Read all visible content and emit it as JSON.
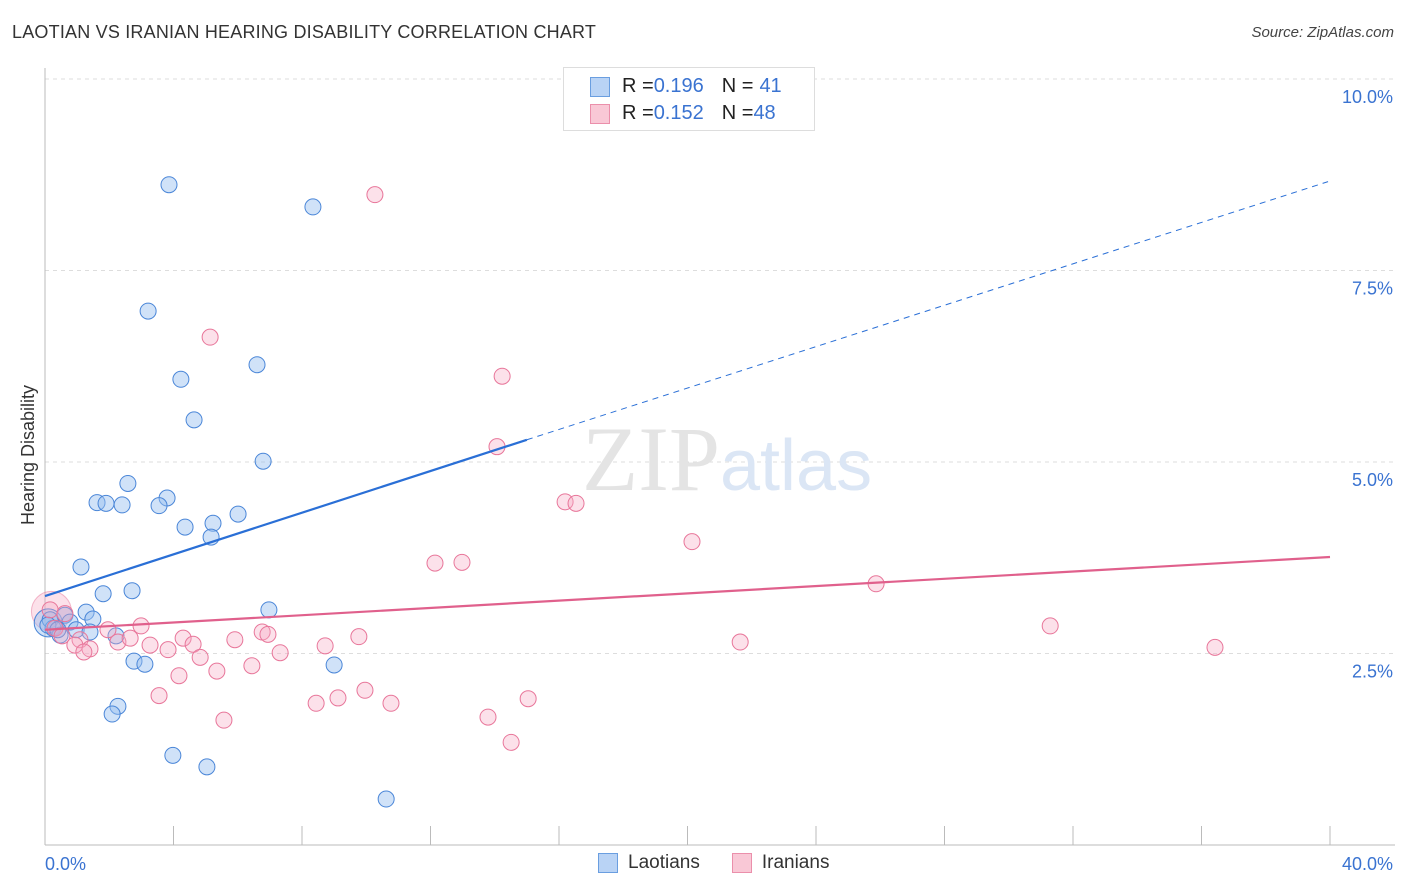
{
  "title": "LAOTIAN VS IRANIAN HEARING DISABILITY CORRELATION CHART",
  "source": "Source: ZipAtlas.com",
  "watermark": "ZIPatlas",
  "legend": [
    {
      "r_label": "R = ",
      "r": "0.196",
      "n_label": "N = ",
      "n": "41"
    },
    {
      "r_label": "R = ",
      "r": "0.152",
      "n_label": "N = ",
      "n": "48"
    }
  ],
  "chart_data": {
    "type": "scatter",
    "title": "LAOTIAN VS IRANIAN HEARING DISABILITY CORRELATION CHART",
    "xlabel": "",
    "ylabel": "Hearing Disability",
    "xlim": [
      0,
      40
    ],
    "ylim": [
      0,
      10
    ],
    "x_tick_labels": [
      "0.0%",
      "40.0%"
    ],
    "y_ticks": [
      2.5,
      5.0,
      7.5,
      10.0
    ],
    "y_tick_labels": [
      "2.5%",
      "5.0%",
      "7.5%",
      "10.0%"
    ],
    "grid": true,
    "legend_placement": "top-center",
    "colors": {
      "Laotians": "#4a86d8",
      "Iranians": "#e8769a",
      "blue_line": "#2a6fd6",
      "pink_line": "#e0608c"
    },
    "series": [
      {
        "name": "Laotians",
        "r": 0.196,
        "n": 41,
        "trend": {
          "x": [
            0,
            15.0
          ],
          "y": [
            3.25,
            5.29
          ],
          "extended_to": [
            39.94,
            8.66
          ]
        },
        "points": [
          [
            3.86,
            8.62
          ],
          [
            8.34,
            8.33
          ],
          [
            3.21,
            6.97
          ],
          [
            4.23,
            6.08
          ],
          [
            6.6,
            6.27
          ],
          [
            4.64,
            5.55
          ],
          [
            6.79,
            5.01
          ],
          [
            2.58,
            4.72
          ],
          [
            1.62,
            4.47
          ],
          [
            1.9,
            4.46
          ],
          [
            2.4,
            4.44
          ],
          [
            3.8,
            4.53
          ],
          [
            3.55,
            4.43
          ],
          [
            6.01,
            4.32
          ],
          [
            4.36,
            4.15
          ],
          [
            5.23,
            4.2
          ],
          [
            5.17,
            4.02
          ],
          [
            1.12,
            3.63
          ],
          [
            2.71,
            3.32
          ],
          [
            1.81,
            3.28
          ],
          [
            6.97,
            3.07
          ],
          [
            1.28,
            3.04
          ],
          [
            0.62,
            3.0
          ],
          [
            1.49,
            2.95
          ],
          [
            0.16,
            2.94
          ],
          [
            0.78,
            2.91
          ],
          [
            0.25,
            2.83
          ],
          [
            0.97,
            2.81
          ],
          [
            1.4,
            2.78
          ],
          [
            0.47,
            2.74
          ],
          [
            2.21,
            2.73
          ],
          [
            2.77,
            2.4
          ],
          [
            3.11,
            2.36
          ],
          [
            9.0,
            2.35
          ],
          [
            2.27,
            1.81
          ],
          [
            2.09,
            1.71
          ],
          [
            3.98,
            1.17
          ],
          [
            5.04,
            1.02
          ],
          [
            10.62,
            0.6
          ],
          [
            0.09,
            2.87
          ],
          [
            0.4,
            2.81
          ]
        ]
      },
      {
        "name": "Iranians",
        "r": 0.152,
        "n": 48,
        "trend": {
          "x": [
            0,
            40
          ],
          "y": [
            2.81,
            3.76
          ]
        },
        "points": [
          [
            10.27,
            8.49
          ],
          [
            5.14,
            6.63
          ],
          [
            14.23,
            6.12
          ],
          [
            14.07,
            5.2
          ],
          [
            16.19,
            4.48
          ],
          [
            16.53,
            4.46
          ],
          [
            20.14,
            3.96
          ],
          [
            12.14,
            3.68
          ],
          [
            12.98,
            3.69
          ],
          [
            25.87,
            3.41
          ],
          [
            31.29,
            2.86
          ],
          [
            0.16,
            3.07
          ],
          [
            0.62,
            3.02
          ],
          [
            1.96,
            2.81
          ],
          [
            2.99,
            2.86
          ],
          [
            0.31,
            2.83
          ],
          [
            0.53,
            2.73
          ],
          [
            1.09,
            2.68
          ],
          [
            0.93,
            2.61
          ],
          [
            1.4,
            2.56
          ],
          [
            1.21,
            2.52
          ],
          [
            2.27,
            2.65
          ],
          [
            2.65,
            2.7
          ],
          [
            3.27,
            2.61
          ],
          [
            3.83,
            2.55
          ],
          [
            4.3,
            2.7
          ],
          [
            4.61,
            2.62
          ],
          [
            4.83,
            2.45
          ],
          [
            5.35,
            2.27
          ],
          [
            5.91,
            2.68
          ],
          [
            6.44,
            2.34
          ],
          [
            6.76,
            2.78
          ],
          [
            6.94,
            2.75
          ],
          [
            7.32,
            2.51
          ],
          [
            8.72,
            2.6
          ],
          [
            9.77,
            2.72
          ],
          [
            21.64,
            2.65
          ],
          [
            36.42,
            2.58
          ],
          [
            3.55,
            1.95
          ],
          [
            4.17,
            2.21
          ],
          [
            5.57,
            1.63
          ],
          [
            8.44,
            1.85
          ],
          [
            9.12,
            1.92
          ],
          [
            9.96,
            2.02
          ],
          [
            10.77,
            1.85
          ],
          [
            13.79,
            1.67
          ],
          [
            15.04,
            1.91
          ],
          [
            14.51,
            1.34
          ]
        ]
      }
    ]
  }
}
